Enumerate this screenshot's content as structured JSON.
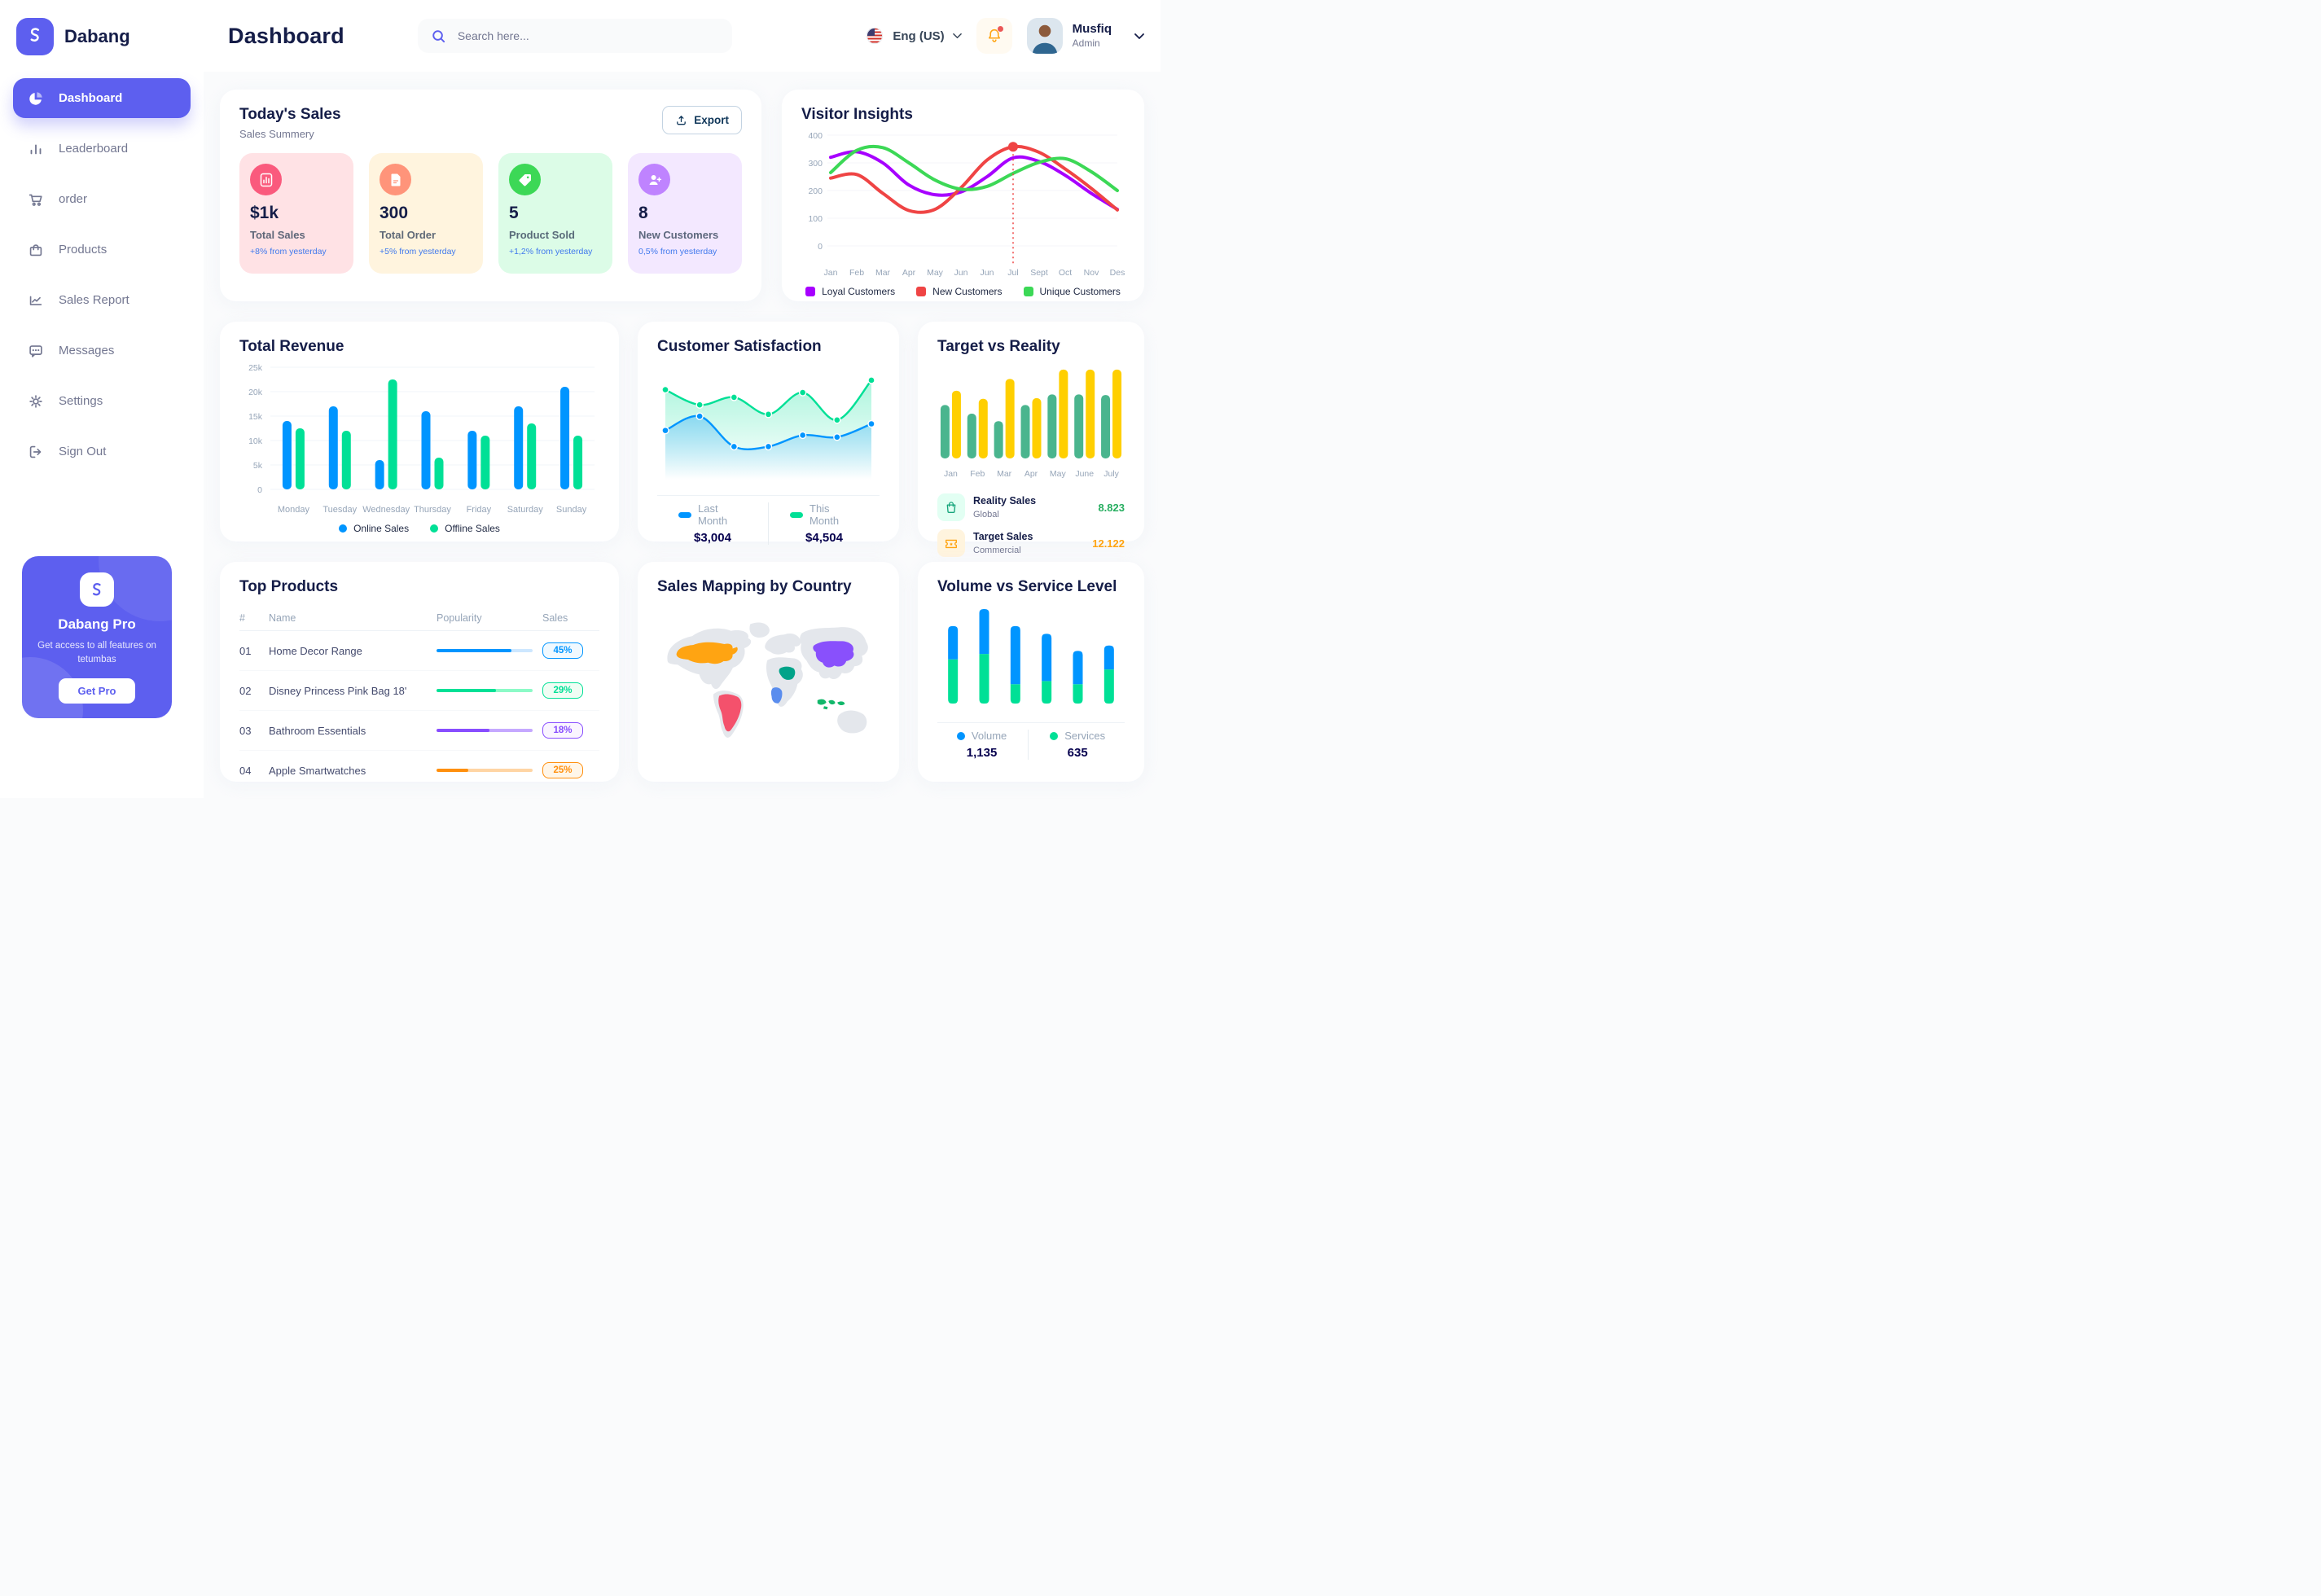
{
  "app": {
    "brand": "Dabang"
  },
  "header": {
    "title": "Dashboard",
    "search_placeholder": "Search here...",
    "language": "Eng (US)",
    "user": {
      "name": "Musfiq",
      "role": "Admin"
    }
  },
  "sidebar": {
    "items": [
      {
        "label": "Dashboard",
        "icon": "pie-chart",
        "active": true
      },
      {
        "label": "Leaderboard",
        "icon": "bar-chart",
        "active": false
      },
      {
        "label": "order",
        "icon": "cart",
        "active": false
      },
      {
        "label": "Products",
        "icon": "bag",
        "active": false
      },
      {
        "label": "Sales Report",
        "icon": "line-chart",
        "active": false
      },
      {
        "label": "Messages",
        "icon": "message",
        "active": false
      },
      {
        "label": "Settings",
        "icon": "gear",
        "active": false
      },
      {
        "label": "Sign Out",
        "icon": "sign-out",
        "active": false
      }
    ],
    "pro": {
      "title": "Dabang Pro",
      "subtitle": "Get access to all features on tetumbas",
      "cta": "Get Pro"
    }
  },
  "todays_sales": {
    "title": "Today's Sales",
    "subtitle": "Sales Summery",
    "export_label": "Export",
    "cards": [
      {
        "value": "$1k",
        "label": "Total Sales",
        "delta": "+8% from yesterday",
        "bg": "#FFE2E5",
        "icon_bg": "#FA5A7D",
        "icon": "bar-chart"
      },
      {
        "value": "300",
        "label": "Total Order",
        "delta": "+5% from yesterday",
        "bg": "#FFF4DE",
        "icon_bg": "#FF947A",
        "icon": "file"
      },
      {
        "value": "5",
        "label": "Product Sold",
        "delta": "+1,2% from yesterday",
        "bg": "#DCFCE7",
        "icon_bg": "#3CD856",
        "icon": "tag"
      },
      {
        "value": "8",
        "label": "New Customers",
        "delta": "0,5% from yesterday",
        "bg": "#F3E8FF",
        "icon_bg": "#BF83FF",
        "icon": "user-plus"
      }
    ]
  },
  "chart_data": [
    {
      "id": "visitor-insights",
      "type": "line",
      "title": "Visitor Insights",
      "x_labels": [
        "Jan",
        "Feb",
        "Mar",
        "Apr",
        "May",
        "Jun",
        "Jun",
        "Jul",
        "Sept",
        "Oct",
        "Nov",
        "Des"
      ],
      "ylim": [
        0,
        400
      ],
      "yticks": [
        0,
        100,
        200,
        300,
        400
      ],
      "grid": true,
      "legend_position": "bottom",
      "series": [
        {
          "name": "Loyal Customers",
          "color": "#A700FF",
          "values": [
            320,
            340,
            300,
            220,
            185,
            195,
            250,
            318,
            305,
            255,
            190,
            132
          ]
        },
        {
          "name": "New Customers",
          "color": "#EF4444",
          "values": [
            245,
            258,
            190,
            128,
            132,
            210,
            310,
            358,
            338,
            278,
            208,
            130
          ]
        },
        {
          "name": "Unique Customers",
          "color": "#3CD856",
          "values": [
            265,
            345,
            355,
            300,
            238,
            205,
            215,
            262,
            302,
            315,
            268,
            200
          ]
        }
      ],
      "annotation": {
        "x_index": 7,
        "value": 358,
        "color": "#EF4444",
        "style": "dotted-vertical-line-with-dot"
      }
    },
    {
      "id": "total-revenue",
      "type": "bar",
      "title": "Total Revenue",
      "categories": [
        "Monday",
        "Tuesday",
        "Wednesday",
        "Thursday",
        "Friday",
        "Saturday",
        "Sunday"
      ],
      "ylim": [
        0,
        25
      ],
      "yticks": [
        0,
        5,
        10,
        15,
        20,
        25
      ],
      "ytick_labels": [
        "0",
        "5k",
        "10k",
        "15k",
        "20k",
        "25k"
      ],
      "grid": true,
      "legend_position": "bottom",
      "series": [
        {
          "name": "Online Sales",
          "color": "#0095FF",
          "values": [
            14,
            17,
            6,
            16,
            12,
            17,
            21
          ]
        },
        {
          "name": "Offline Sales",
          "color": "#00E096",
          "values": [
            12.5,
            12,
            22.5,
            6.5,
            11,
            13.5,
            11
          ]
        }
      ]
    },
    {
      "id": "customer-satisfaction",
      "type": "area",
      "title": "Customer Satisfaction",
      "ylim": [
        0,
        110
      ],
      "grid": false,
      "legend_position": "bottom",
      "series": [
        {
          "name": "Last Month",
          "color": "#0095FF",
          "total": "$3,004",
          "values": [
            45,
            60,
            28,
            28,
            40,
            38,
            52
          ]
        },
        {
          "name": "This Month",
          "color": "#00E096",
          "total": "$4,504",
          "values": [
            88,
            72,
            80,
            62,
            85,
            56,
            98
          ]
        }
      ]
    },
    {
      "id": "target-vs-reality",
      "type": "bar",
      "title": "Target vs Reality",
      "categories": [
        "Jan",
        "Feb",
        "Mar",
        "Apr",
        "May",
        "June",
        "July"
      ],
      "ylim": [
        0,
        15.2
      ],
      "grid": false,
      "series": [
        {
          "name": "Reality Sales",
          "color": "#4AB58E",
          "values": [
            8.6,
            7.2,
            6.0,
            8.6,
            10.3,
            10.3,
            10.2
          ]
        },
        {
          "name": "Target Sales",
          "color": "#FFCF00",
          "values": [
            10.9,
            9.6,
            12.8,
            9.7,
            14.3,
            14.3,
            14.3
          ]
        }
      ],
      "legend": [
        {
          "label": "Reality Sales",
          "sub": "Global",
          "value": "8.823",
          "value_color": "#27AE60",
          "icon": "shopping-bag",
          "icon_bg": "#E2FFF3"
        },
        {
          "label": "Target Sales",
          "sub": "Commercial",
          "value": "12.122",
          "value_color": "#FFA412",
          "icon": "ticket",
          "icon_bg": "#FFF4DE"
        }
      ]
    },
    {
      "id": "volume-vs-service",
      "type": "stacked-bar",
      "title": "Volume vs Service Level",
      "legend_position": "bottom",
      "series": [
        {
          "name": "Volume",
          "color": "#0095FF",
          "total": "1,135",
          "values": [
            43,
            58,
            75,
            61,
            43,
            31
          ]
        },
        {
          "name": "Services",
          "color": "#00E096",
          "total": "635",
          "values": [
            57,
            64,
            25,
            29,
            25,
            44
          ]
        }
      ]
    }
  ],
  "top_products": {
    "title": "Top Products",
    "columns": [
      "#",
      "Name",
      "Popularity",
      "Sales"
    ],
    "rows": [
      {
        "id": "01",
        "name": "Home Decor Range",
        "popularity": 78,
        "sales": "45%",
        "color": "#0095FF",
        "track": "#CDE7FF",
        "badge_bg": "#F0F9FF"
      },
      {
        "id": "02",
        "name": "Disney Princess Pink Bag 18'",
        "popularity": 62,
        "sales": "29%",
        "color": "#00E096",
        "track": "#8CFAC7",
        "badge_bg": "#F0FDF4"
      },
      {
        "id": "03",
        "name": "Bathroom Essentials",
        "popularity": 55,
        "sales": "18%",
        "color": "#884DFF",
        "track": "#C5A8FF",
        "badge_bg": "#FAF5FF"
      },
      {
        "id": "04",
        "name": "Apple Smartwatches",
        "popularity": 33,
        "sales": "25%",
        "color": "#FF8F0D",
        "track": "#FFD5A4",
        "badge_bg": "#FFF6E9"
      }
    ]
  },
  "sales_map": {
    "title": "Sales Mapping by Country",
    "land_color": "#E4E7EC",
    "countries": [
      {
        "name": "United States",
        "color": "#FFA412"
      },
      {
        "name": "Brazil",
        "color": "#F4516C"
      },
      {
        "name": "Saudi Arabia",
        "color": "#00A389"
      },
      {
        "name": "DR Congo",
        "color": "#5A8DEE"
      },
      {
        "name": "China",
        "color": "#8950FC"
      },
      {
        "name": "Indonesia",
        "color": "#12B76A"
      }
    ]
  }
}
